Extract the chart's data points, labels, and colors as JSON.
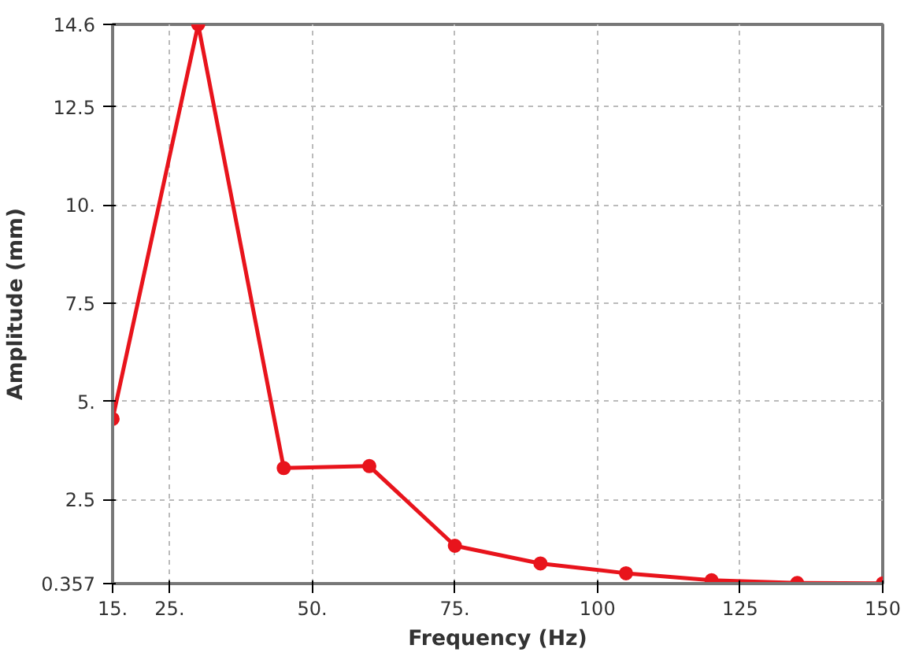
{
  "chart_data": {
    "type": "line",
    "xlabel": "Frequency (Hz)",
    "ylabel": "Amplitude (mm)",
    "x": [
      15,
      30,
      45,
      60,
      75,
      90,
      105,
      120,
      135,
      150
    ],
    "series": [
      {
        "color": "#e8141c",
        "values": [
          4.55,
          14.6,
          3.3,
          3.35,
          1.32,
          0.87,
          0.62,
          0.44,
          0.37,
          0.36
        ]
      }
    ],
    "xlim": [
      15,
      150
    ],
    "ylim": [
      0.357,
      14.6
    ],
    "xticks": [
      {
        "value": 15,
        "label": "15."
      },
      {
        "value": 25,
        "label": "25."
      },
      {
        "value": 50,
        "label": "50."
      },
      {
        "value": 75,
        "label": "75."
      },
      100,
      125,
      150
    ],
    "yticks": [
      0.357,
      2.5,
      {
        "value": 5,
        "label": "5."
      },
      7.5,
      {
        "value": 10,
        "label": "10."
      },
      12.5,
      14.6
    ],
    "grid": true,
    "marker": "circle",
    "line_style": "solid"
  }
}
